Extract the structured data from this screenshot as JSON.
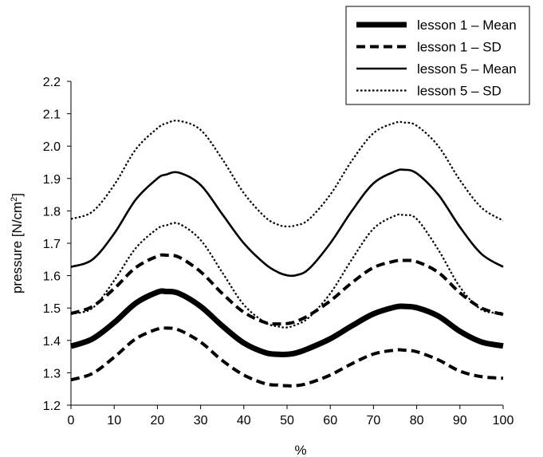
{
  "chart_data": {
    "type": "line",
    "title": "",
    "xlabel": "%",
    "ylabel": "pressure [N/cm",
    "ylabel_superscript": "2",
    "ylabel_suffix": "]",
    "xlim": [
      0,
      100
    ],
    "ylim": [
      1.2,
      2.2
    ],
    "x_ticks": [
      0,
      10,
      20,
      30,
      40,
      50,
      60,
      70,
      80,
      90,
      100
    ],
    "x_tick_labels": [
      "0",
      "10",
      "20",
      "30",
      "40",
      "50",
      "60",
      "70",
      "80",
      "90",
      "100"
    ],
    "y_ticks": [
      1.2,
      1.3,
      1.4,
      1.5,
      1.6,
      1.7,
      1.8,
      1.9,
      2.0,
      2.1,
      2.2
    ],
    "y_tick_labels": [
      "1.2",
      "1.3",
      "1.4",
      "1.5",
      "1.6",
      "1.7",
      "1.8",
      "1.9",
      "2.0",
      "2.1",
      "2.2"
    ],
    "grid": false,
    "legend_position": "top-right",
    "x": [
      0,
      5,
      10,
      15,
      20,
      22,
      25,
      30,
      35,
      40,
      45,
      48,
      50,
      52,
      55,
      60,
      65,
      70,
      75,
      77,
      80,
      85,
      90,
      95,
      100
    ],
    "series": [
      {
        "name": "lesson 1 – Mean",
        "style": "thick-solid",
        "values": [
          1.382,
          1.405,
          1.455,
          1.515,
          1.549,
          1.551,
          1.545,
          1.505,
          1.445,
          1.392,
          1.362,
          1.357,
          1.357,
          1.361,
          1.375,
          1.405,
          1.445,
          1.482,
          1.503,
          1.505,
          1.501,
          1.475,
          1.428,
          1.395,
          1.383
        ]
      },
      {
        "name": "lesson 1 – SD",
        "style": "dashed",
        "values": [
          1.278,
          1.298,
          1.348,
          1.405,
          1.435,
          1.438,
          1.432,
          1.395,
          1.338,
          1.293,
          1.266,
          1.262,
          1.26,
          1.26,
          1.268,
          1.293,
          1.328,
          1.358,
          1.37,
          1.37,
          1.365,
          1.34,
          1.305,
          1.288,
          1.283
        ]
      },
      {
        "name": "lesson 1 – SD",
        "style": "dashed",
        "values": [
          1.483,
          1.505,
          1.56,
          1.625,
          1.66,
          1.663,
          1.657,
          1.612,
          1.545,
          1.487,
          1.455,
          1.451,
          1.452,
          1.458,
          1.477,
          1.522,
          1.578,
          1.625,
          1.645,
          1.647,
          1.643,
          1.61,
          1.547,
          1.5,
          1.48
        ]
      },
      {
        "name": "lesson 5 – Mean",
        "style": "solid",
        "values": [
          1.627,
          1.65,
          1.73,
          1.835,
          1.9,
          1.912,
          1.918,
          1.88,
          1.79,
          1.7,
          1.635,
          1.61,
          1.601,
          1.601,
          1.62,
          1.7,
          1.8,
          1.885,
          1.922,
          1.927,
          1.916,
          1.85,
          1.75,
          1.667,
          1.627
        ]
      },
      {
        "name": "lesson 5 – SD",
        "style": "dotted",
        "values": [
          1.775,
          1.798,
          1.88,
          1.99,
          2.055,
          2.07,
          2.078,
          2.05,
          1.96,
          1.855,
          1.78,
          1.757,
          1.752,
          1.755,
          1.773,
          1.85,
          1.955,
          2.04,
          2.072,
          2.073,
          2.063,
          2.0,
          1.895,
          1.81,
          1.77
        ]
      },
      {
        "name": "lesson 5 – SD",
        "style": "dotted",
        "values": [
          1.482,
          1.5,
          1.585,
          1.685,
          1.745,
          1.755,
          1.76,
          1.71,
          1.61,
          1.51,
          1.455,
          1.443,
          1.44,
          1.448,
          1.47,
          1.545,
          1.65,
          1.745,
          1.785,
          1.787,
          1.775,
          1.68,
          1.565,
          1.495,
          1.485
        ]
      }
    ],
    "legend": [
      {
        "label": "lesson 1 – Mean",
        "style": "thick-solid"
      },
      {
        "label": "lesson 1 – SD",
        "style": "dashed"
      },
      {
        "label": "lesson 5 – Mean",
        "style": "solid"
      },
      {
        "label": "lesson 5 – SD",
        "style": "dotted"
      }
    ],
    "colors": {
      "line": "#000000",
      "background": "#ffffff"
    }
  }
}
